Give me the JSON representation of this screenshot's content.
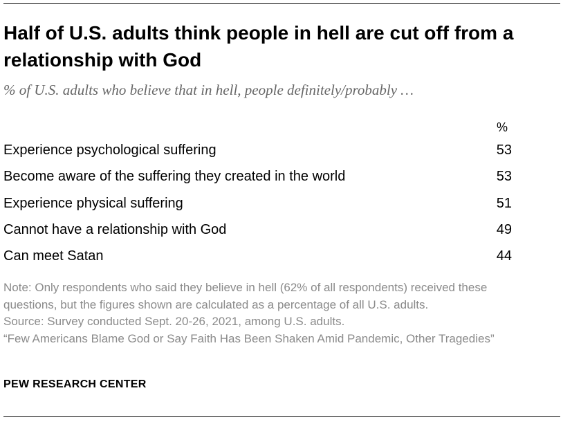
{
  "header": {
    "title": "Half of U.S. adults think people in hell are cut off from a relationship with God",
    "subtitle": "% of U.S. adults who believe that in hell, people definitely/probably …"
  },
  "table": {
    "column_header": "%",
    "rows": [
      [
        "Experience psychological suffering",
        53
      ],
      [
        "Become aware of the suffering they created in the world",
        53
      ],
      [
        "Experience physical suffering",
        51
      ],
      [
        "Cannot have a relationship with God",
        49
      ],
      [
        "Can meet Satan",
        44
      ]
    ]
  },
  "footer": {
    "note": "Note: Only respondents who said they believe in hell (62% of all respondents) received these questions, but the figures shown are calculated as a percentage of all U.S. adults.",
    "source": "Source: Survey conducted Sept. 20-26, 2021, among U.S. adults.",
    "citation": "“Few Americans Blame God or Say Faith Has Been Shaken Amid Pandemic, Other Tragedies”",
    "brand": "PEW RESEARCH CENTER"
  }
}
